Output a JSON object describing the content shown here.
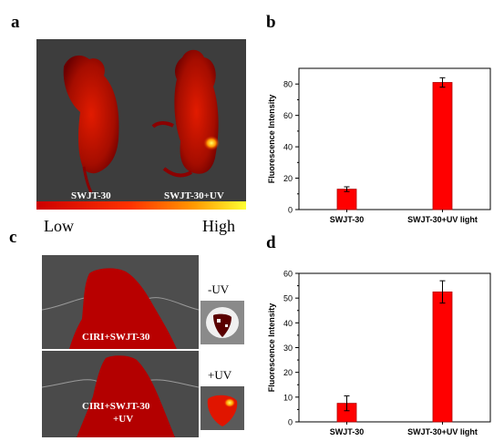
{
  "panels": {
    "a": {
      "letter": "a",
      "labels": [
        "SWJT-30",
        "SWJT-30+UV"
      ],
      "scale_low": "Low",
      "scale_high": "High",
      "colors": {
        "background": "#3c3c3c",
        "signal_low": "#8b0000",
        "signal_mid": "#cc1a00",
        "signal_high": "#ffff33"
      }
    },
    "b": {
      "letter": "b"
    },
    "c": {
      "letter": "c",
      "labels": [
        "CIRI+SWJT-30",
        "CIRI+SWJT-30",
        "+UV"
      ],
      "heart_labels": [
        "-UV",
        "+UV"
      ]
    },
    "d": {
      "letter": "d"
    }
  },
  "chart_data": [
    {
      "type": "bar",
      "panel": "b",
      "categories": [
        "SWJT-30",
        "SWJT-30+UV light"
      ],
      "values": [
        13,
        81
      ],
      "errors": [
        1.5,
        3
      ],
      "ylabel": "Fluorescence Intensity",
      "ylim": [
        0,
        90
      ],
      "yticks": [
        0,
        20,
        40,
        60,
        80
      ],
      "bar_color": "#ff0000"
    },
    {
      "type": "bar",
      "panel": "d",
      "categories": [
        "SWJT-30",
        "SWJT-30+UV light"
      ],
      "values": [
        7.5,
        52.5
      ],
      "errors": [
        3,
        4.5
      ],
      "ylabel": "Fluorescence Intensity",
      "ylim": [
        0,
        60
      ],
      "yticks": [
        0,
        10,
        20,
        30,
        40,
        50,
        60
      ],
      "bar_color": "#ff0000"
    }
  ]
}
